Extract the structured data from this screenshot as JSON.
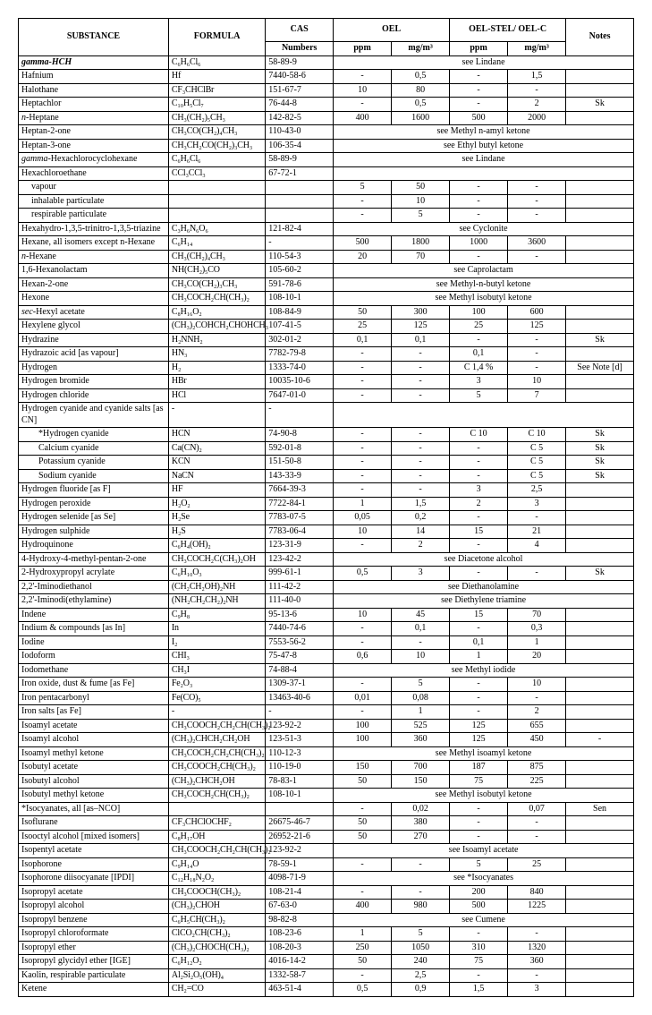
{
  "headers": {
    "substance": "SUBSTANCE",
    "formula": "FORMULA",
    "cas": "CAS",
    "cas_sub": "Numbers",
    "oel": "OEL",
    "stel": "OEL-STEL/ OEL-C",
    "ppm": "ppm",
    "mgm3": "mg/m³",
    "notes": "Notes"
  },
  "rows": [
    {
      "s": "gamma-HCH",
      "sClass": "b-italic",
      "f": "C₆H₆Cl₆",
      "c": "58-89-9",
      "ref": "see Lindane"
    },
    {
      "s": "Hafnium",
      "f": "Hf",
      "c": "7440-58-6",
      "v": [
        "-",
        "0,5",
        "-",
        "1,5"
      ],
      "n": ""
    },
    {
      "s": "Halothane",
      "f": "CF₃CHClBr",
      "c": "151-67-7",
      "v": [
        "10",
        "80",
        "-",
        "-"
      ],
      "n": ""
    },
    {
      "s": "Heptachlor",
      "f": "C₁₀H₅Cl₇",
      "c": "76-44-8",
      "v": [
        "-",
        "0,5",
        "-",
        "2"
      ],
      "n": "Sk"
    },
    {
      "s": "n-Heptane",
      "sHtml": "<i>n</i>-Heptane",
      "f": "CH₃(CH₂)₅CH₃",
      "c": "142-82-5",
      "v": [
        "400",
        "1600",
        "500",
        "2000"
      ],
      "n": ""
    },
    {
      "s": "Heptan-2-one",
      "f": "CH₃CO(CH₂)₄CH₃",
      "c": "110-43-0",
      "ref": "see Methyl n-amyl ketone"
    },
    {
      "s": "Heptan-3-one",
      "f": "CH₃CH₂CO(CH₂)₃CH₃",
      "c": "106-35-4",
      "ref": "see Ethyl butyl ketone"
    },
    {
      "s": "gamma-Hexachlorocyclohexane",
      "sHtml": "<i>gamma</i>-Hexachlorocyclohexane",
      "f": "C₆H₆Cl₆",
      "c": "58-89-9",
      "ref": "see Lindane"
    },
    {
      "s": "Hexachloroethane",
      "f": "CCl₃CCl₃",
      "c": "67-72-1",
      "blankRow": true
    },
    {
      "s": "vapour",
      "indent": 1,
      "f": "",
      "c": "",
      "v": [
        "5",
        "50",
        "-",
        "-"
      ],
      "n": ""
    },
    {
      "s": "inhalable particulate",
      "indent": 1,
      "f": "",
      "c": "",
      "v": [
        "-",
        "10",
        "-",
        "-"
      ],
      "n": ""
    },
    {
      "s": "respirable particulate",
      "indent": 1,
      "f": "",
      "c": "",
      "v": [
        "-",
        "5",
        "-",
        "-"
      ],
      "n": ""
    },
    {
      "s": "Hexahydro-1,3,5-trinitro-1,3,5-triazine",
      "wrap": true,
      "f": "C₃H₆N₆O₆",
      "c": "121-82-4",
      "ref": "see Cyclonite"
    },
    {
      "s": "Hexane, all isomers except n-Hexane",
      "wrap": true,
      "f": "C₆H₁₄",
      "c": "-",
      "v": [
        "500",
        "1800",
        "1000",
        "3600"
      ],
      "n": ""
    },
    {
      "s": "n-Hexane",
      "sHtml": "<i>n</i>-Hexane",
      "f": "CH₃(CH₂)₄CH₃",
      "c": "110-54-3",
      "v": [
        "20",
        "70",
        "-",
        "-"
      ],
      "n": ""
    },
    {
      "s": "1,6-Hexanolactam",
      "f": "NH(CH₂)₅CO",
      "c": "105-60-2",
      "ref": "see Caprolactam"
    },
    {
      "s": "Hexan-2-one",
      "f": "CH₃CO(CH₂)₃CH₃",
      "c": "591-78-6",
      "ref": "see Methyl-n-butyl ketone"
    },
    {
      "s": "Hexone",
      "f": "CH₃COCH₂CH(CH₃)₂",
      "c": "108-10-1",
      "ref": "see Methyl isobutyl ketone"
    },
    {
      "s": "sec-Hexyl acetate",
      "sHtml": "<i>sec</i>-Hexyl acetate",
      "f": "C₈H₁₆O₂",
      "c": "108-84-9",
      "v": [
        "50",
        "300",
        "100",
        "600"
      ],
      "n": ""
    },
    {
      "s": "Hexylene glycol",
      "f": "(CH₃)₂COHCH₂CHOHCH₃",
      "c": "107-41-5",
      "v": [
        "25",
        "125",
        "25",
        "125"
      ],
      "n": ""
    },
    {
      "s": "Hydrazine",
      "f": "H₂NNH₂",
      "c": "302-01-2",
      "v": [
        "0,1",
        "0,1",
        "-",
        "-"
      ],
      "n": "Sk"
    },
    {
      "s": "Hydrazoic acid [as vapour]",
      "f": "HN₃",
      "c": "7782-79-8",
      "v": [
        "-",
        "-",
        "0,1",
        "-"
      ],
      "n": ""
    },
    {
      "s": "Hydrogen",
      "f": "H₂",
      "c": "1333-74-0",
      "v": [
        "-",
        "-",
        "C 1,4 %",
        "-"
      ],
      "n": "See Note [d]"
    },
    {
      "s": "Hydrogen bromide",
      "f": "HBr",
      "c": "10035-10-6",
      "v": [
        "-",
        "-",
        "3",
        "10"
      ],
      "n": ""
    },
    {
      "s": "Hydrogen chloride",
      "f": "HCl",
      "c": "7647-01-0",
      "v": [
        "-",
        "-",
        "5",
        "7"
      ],
      "n": ""
    },
    {
      "s": "Hydrogen cyanide and cyanide salts [as CN]",
      "wrap": true,
      "f": "-",
      "c": "-",
      "blankRow": true
    },
    {
      "s": "*Hydrogen cyanide",
      "indent": 2,
      "f": "HCN",
      "c": "74-90-8",
      "v": [
        "-",
        "-",
        "C 10",
        "C 10"
      ],
      "n": "Sk"
    },
    {
      "s": "Calcium cyanide",
      "indent": 2,
      "f": "Ca(CN)₂",
      "c": "592-01-8",
      "v": [
        "-",
        "-",
        "-",
        "C 5"
      ],
      "n": "Sk"
    },
    {
      "s": "Potassium cyanide",
      "indent": 2,
      "f": "KCN",
      "c": "151-50-8",
      "v": [
        "-",
        "-",
        "-",
        "C 5"
      ],
      "n": "Sk"
    },
    {
      "s": "Sodium cyanide",
      "indent": 2,
      "f": "NaCN",
      "c": "143-33-9",
      "v": [
        "-",
        "-",
        "-",
        "C 5"
      ],
      "n": "Sk"
    },
    {
      "s": "Hydrogen fluoride [as F]",
      "f": "HF",
      "c": "7664-39-3",
      "v": [
        "-",
        "-",
        "3",
        "2,5"
      ],
      "n": ""
    },
    {
      "s": "Hydrogen peroxide",
      "f": "H₂O₂",
      "c": "7722-84-1",
      "v": [
        "1",
        "1,5",
        "2",
        "3"
      ],
      "n": ""
    },
    {
      "s": "Hydrogen selenide [as Se]",
      "f": "H₂Se",
      "c": "7783-07-5",
      "v": [
        "0,05",
        "0,2",
        "-",
        "-"
      ],
      "n": ""
    },
    {
      "s": "Hydrogen sulphide",
      "f": "H₂S",
      "c": "7783-06-4",
      "v": [
        "10",
        "14",
        "15",
        "21"
      ],
      "n": ""
    },
    {
      "s": "Hydroquinone",
      "f": "C₆H₄(OH)₂",
      "c": "123-31-9",
      "v": [
        "-",
        "2",
        "-",
        "4"
      ],
      "n": ""
    },
    {
      "s": "4-Hydroxy-4-methyl-pentan-2-one",
      "f": "CH₃COCH₂C(CH₃)₂OH",
      "c": "123-42-2",
      "ref": "see Diacetone alcohol"
    },
    {
      "s": "2-Hydroxypropyl acrylate",
      "f": "C₆H₁₀O₃",
      "c": "999-61-1",
      "v": [
        "0,5",
        "3",
        "-",
        "-"
      ],
      "n": "Sk"
    },
    {
      "s": "2,2'-Iminodiethanol",
      "f": "(CH₂CH₂OH)₂NH",
      "c": "111-42-2",
      "ref": "see Diethanolamine"
    },
    {
      "s": "2,2'-Iminodi(ethylamine)",
      "f": "(NH₂CH₂CH₂)₂NH",
      "c": "111-40-0",
      "ref": "see Diethylene triamine"
    },
    {
      "s": "Indene",
      "f": "C₉H₈",
      "c": "95-13-6",
      "v": [
        "10",
        "45",
        "15",
        "70"
      ],
      "n": ""
    },
    {
      "s": "Indium & compounds [as In]",
      "f": "In",
      "c": "7440-74-6",
      "v": [
        "-",
        "0,1",
        "-",
        "0,3"
      ],
      "n": ""
    },
    {
      "s": "Iodine",
      "f": "I₂",
      "c": "7553-56-2",
      "v": [
        "-",
        "-",
        "0,1",
        "1"
      ],
      "n": ""
    },
    {
      "s": "Iodoform",
      "f": "CHI₃",
      "c": "75-47-8",
      "v": [
        "0,6",
        "10",
        "1",
        "20"
      ],
      "n": ""
    },
    {
      "s": "Iodomethane",
      "f": "CH₃I",
      "c": "74-88-4",
      "ref": "see Methyl iodide"
    },
    {
      "s": "Iron oxide, dust & fume [as Fe]",
      "f": "Fe₂O₃",
      "c": "1309-37-1",
      "v": [
        "-",
        "5",
        "-",
        "10"
      ],
      "n": ""
    },
    {
      "s": "Iron pentacarbonyl",
      "f": "Fe(CO)₅",
      "c": "13463-40-6",
      "v": [
        "0,01",
        "0,08",
        "-",
        "-"
      ],
      "n": ""
    },
    {
      "s": "Iron salts [as Fe]",
      "f": "-",
      "c": "-",
      "v": [
        "-",
        "1",
        "-",
        "2"
      ],
      "n": ""
    },
    {
      "s": "Isoamyl acetate",
      "f": "CH₃COOCH₂CH₂CH(CH₃)₂",
      "c": "123-92-2",
      "v": [
        "100",
        "525",
        "125",
        "655"
      ],
      "n": ""
    },
    {
      "s": "Isoamyl alcohol",
      "f": "(CH₃)₂CHCH₂CH₂OH",
      "c": "123-51-3",
      "v": [
        "100",
        "360",
        "125",
        "450"
      ],
      "n": "-"
    },
    {
      "s": "Isoamyl methyl ketone",
      "f": "CH₃COCH₂CH₂CH(CH₃)₂",
      "c": "110-12-3",
      "ref": "see Methyl isoamyl ketone"
    },
    {
      "s": "Isobutyl acetate",
      "f": "CH₃COOCH₂CH(CH₃)₂",
      "c": "110-19-0",
      "v": [
        "150",
        "700",
        "187",
        "875"
      ],
      "n": ""
    },
    {
      "s": "Isobutyl alcohol",
      "f": "(CH₃)₂CHCH₂OH",
      "c": "78-83-1",
      "v": [
        "50",
        "150",
        "75",
        "225"
      ],
      "n": ""
    },
    {
      "s": "Isobutyl methyl ketone",
      "f": "CH₃COCH₂CH(CH₃)₂",
      "c": "108-10-1",
      "ref": "see Methyl isobutyl ketone"
    },
    {
      "s": "*Isocyanates, all [as–NCO]",
      "f": "",
      "c": "",
      "v": [
        "-",
        "0,02",
        "-",
        "0,07"
      ],
      "n": "Sen"
    },
    {
      "s": "Isoflurane",
      "f": "CF₃CHClOCHF₂",
      "c": "26675-46-7",
      "v": [
        "50",
        "380",
        "-",
        "-"
      ],
      "n": ""
    },
    {
      "s": "Isooctyl alcohol [mixed isomers]",
      "f": "C₈H₁₇OH",
      "c": "26952-21-6",
      "v": [
        "50",
        "270",
        "-",
        "-"
      ],
      "n": ""
    },
    {
      "s": "Isopentyl acetate",
      "f": "CH₃COOCH₂CH₂CH(CH₃)₂",
      "c": "123-92-2",
      "ref": "see Isoamyl acetate"
    },
    {
      "s": "Isophorone",
      "f": "C₉H₁₄O",
      "c": "78-59-1",
      "v": [
        "-",
        "-",
        "5",
        "25"
      ],
      "n": ""
    },
    {
      "s": "Isophorone diisocyanate [IPDI]",
      "f": "C₁₂H₁₈N₂O₂",
      "c": "4098-71-9",
      "ref": "see *Isocyanates"
    },
    {
      "s": "Isopropyl acetate",
      "f": "CH₃COOCH(CH₃)₂",
      "c": "108-21-4",
      "v": [
        "-",
        "-",
        "200",
        "840"
      ],
      "n": ""
    },
    {
      "s": "Isopropyl alcohol",
      "f": "(CH₃)₂CHOH",
      "c": "67-63-0",
      "v": [
        "400",
        "980",
        "500",
        "1225"
      ],
      "n": ""
    },
    {
      "s": "Isopropyl benzene",
      "f": "C₆H₅CH(CH₃)₂",
      "c": "98-82-8",
      "ref": "see Cumene"
    },
    {
      "s": "Isopropyl chloroformate",
      "f": "ClCO₂CH(CH₃)₂",
      "c": "108-23-6",
      "v": [
        "1",
        "5",
        "-",
        "-"
      ],
      "n": ""
    },
    {
      "s": "Isopropyl ether",
      "f": "(CH₃)₂CHOCH(CH₃)₂",
      "c": "108-20-3",
      "v": [
        "250",
        "1050",
        "310",
        "1320"
      ],
      "n": ""
    },
    {
      "s": "Isopropyl glycidyl ether [IGE]",
      "f": "C₆H₁₂O₂",
      "c": "4016-14-2",
      "v": [
        "50",
        "240",
        "75",
        "360"
      ],
      "n": ""
    },
    {
      "s": "Kaolin, respirable particulate",
      "f": "Al₂Si₂O₅(OH)₄",
      "c": "1332-58-7",
      "v": [
        "-",
        "2,5",
        "-",
        "-"
      ],
      "n": ""
    },
    {
      "s": "Ketene",
      "f": "CH₂=CO",
      "c": "463-51-4",
      "v": [
        "0,5",
        "0,9",
        "1,5",
        "3"
      ],
      "n": ""
    }
  ]
}
